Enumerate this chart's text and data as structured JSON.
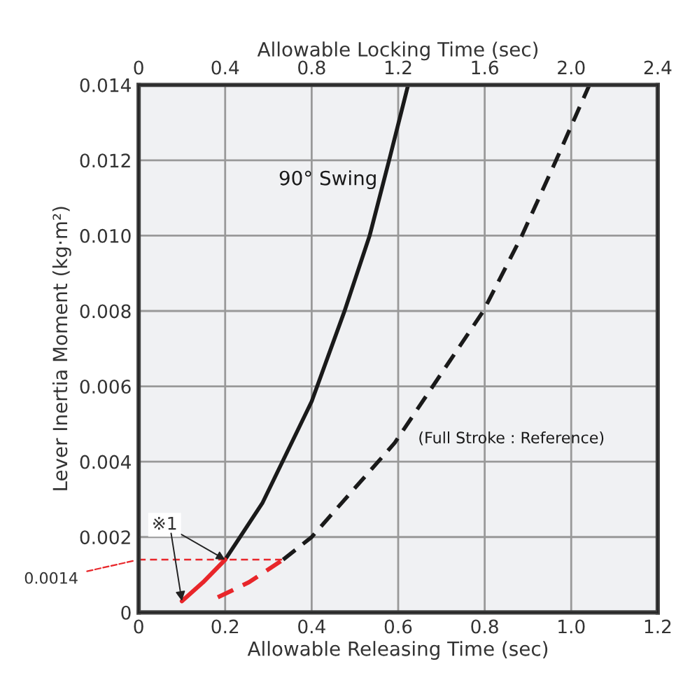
{
  "chart_data": {
    "type": "line",
    "xlabel": "Allowable Releasing Time (sec)",
    "x2label": "Allowable Locking Time (sec)",
    "ylabel": "Lever Inertia Moment (kg·m²)",
    "series": [
      {
        "name": "90° Swing",
        "color": "#1a1a1a",
        "line_style": "solid",
        "x": [
          0.2,
          0.286,
          0.4,
          0.476,
          0.534,
          0.579,
          0.623
        ],
        "values": [
          0.0014,
          0.0029,
          0.0056,
          0.008,
          0.01,
          0.012,
          0.014
        ]
      },
      {
        "color": "#e8262a",
        "line_style": "solid",
        "x": [
          0.1,
          0.149,
          0.2
        ],
        "values": [
          0.0003,
          0.0008,
          0.0014
        ]
      },
      {
        "name": "(Full Stroke : Reference)",
        "color": "#1a1a1a",
        "line_style": "dashed",
        "x": [
          0.334,
          0.4,
          0.592,
          0.797,
          0.886,
          0.965,
          1.042
        ],
        "values": [
          0.0014,
          0.002,
          0.0045,
          0.008,
          0.01,
          0.012,
          0.014
        ]
      },
      {
        "color": "#e8262a",
        "line_style": "dashed",
        "x": [
          0.183,
          0.255,
          0.334
        ],
        "values": [
          0.0004,
          0.0008,
          0.0014
        ]
      }
    ],
    "xlim": [
      0,
      1.2
    ],
    "xticks": [
      0,
      0.2,
      0.4,
      0.6,
      0.8,
      {
        "value": 1.0,
        "label": "1.0"
      },
      1.2
    ],
    "x2lim": [
      0,
      2.4
    ],
    "x2ticks": [
      0,
      0.4,
      0.8,
      1.2,
      1.6,
      {
        "value": 2.0,
        "label": "2.0"
      },
      2.4
    ],
    "ylim": [
      0,
      0.014
    ],
    "yticks": [
      0,
      0.002,
      0.004,
      0.006,
      0.008,
      {
        "value": 0.01,
        "label": "0.010"
      },
      0.012,
      0.014
    ],
    "ref_lines": [
      {
        "axis": "y",
        "value": 0.0014,
        "label": "0.0014",
        "color": "#e8262a",
        "line_style": "dashed"
      }
    ],
    "annotations": [
      {
        "text": "※1",
        "x": 0.2,
        "y": 0.0014
      }
    ],
    "grid": true,
    "marker": "none"
  }
}
